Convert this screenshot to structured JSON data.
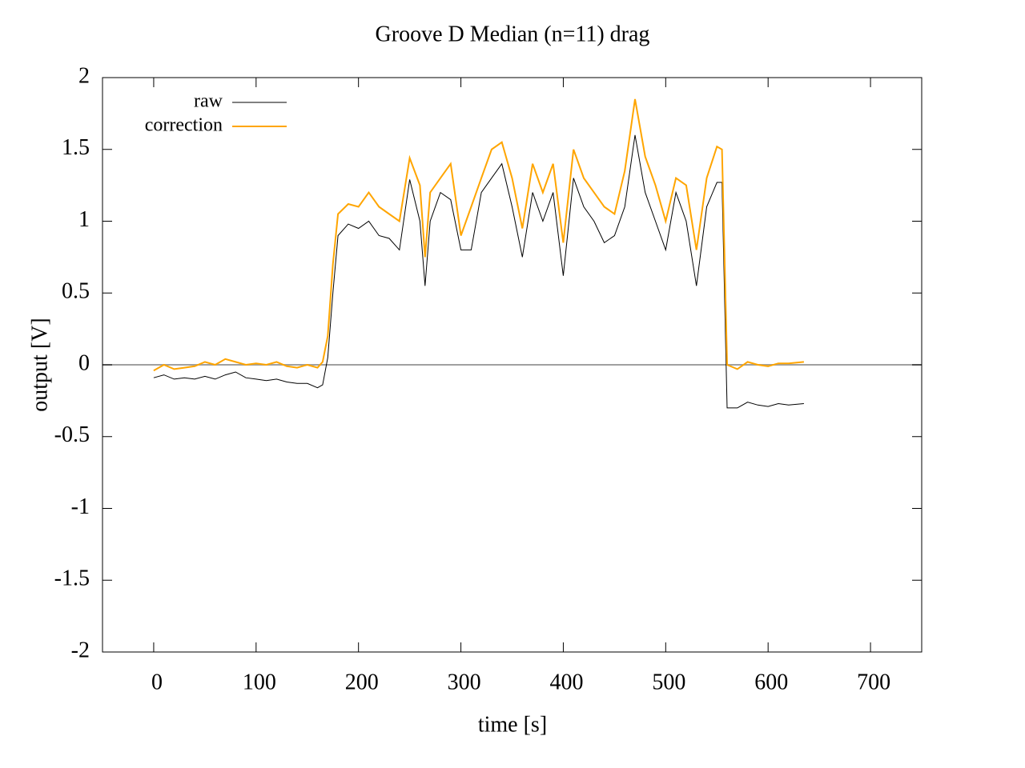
{
  "chart_data": {
    "type": "line",
    "title": "Groove D  Median (n=11) drag",
    "xlabel": "time [s]",
    "ylabel": "output [V]",
    "xlim": [
      -50,
      750
    ],
    "xticks": [
      0,
      100,
      200,
      300,
      400,
      500,
      600,
      700
    ],
    "ylim": [
      -2,
      2
    ],
    "yticks": [
      -2,
      -1.5,
      -1,
      -0.5,
      0,
      0.5,
      1,
      1.5,
      2
    ],
    "zero_axis": true,
    "legend": "top-left",
    "x": [
      0,
      10,
      20,
      30,
      40,
      50,
      60,
      70,
      80,
      90,
      100,
      110,
      120,
      130,
      140,
      150,
      160,
      165,
      170,
      175,
      180,
      190,
      200,
      210,
      220,
      230,
      240,
      250,
      260,
      265,
      270,
      280,
      290,
      300,
      310,
      320,
      330,
      340,
      350,
      360,
      370,
      380,
      390,
      400,
      410,
      420,
      430,
      440,
      450,
      460,
      470,
      480,
      490,
      500,
      510,
      520,
      530,
      540,
      550,
      555,
      560,
      570,
      580,
      590,
      600,
      610,
      620,
      635
    ],
    "series": [
      {
        "name": "raw",
        "color": "#000000",
        "values": [
          -0.09,
          -0.07,
          -0.1,
          -0.09,
          -0.1,
          -0.08,
          -0.1,
          -0.07,
          -0.05,
          -0.09,
          -0.1,
          -0.11,
          -0.1,
          -0.12,
          -0.13,
          -0.13,
          -0.16,
          -0.14,
          0.05,
          0.5,
          0.9,
          0.98,
          0.95,
          1.0,
          0.9,
          0.88,
          0.8,
          1.29,
          1.0,
          0.55,
          1.0,
          1.2,
          1.15,
          0.8,
          0.8,
          1.2,
          1.3,
          1.4,
          1.1,
          0.75,
          1.2,
          1.0,
          1.2,
          0.62,
          1.3,
          1.1,
          1.0,
          0.85,
          0.9,
          1.1,
          1.6,
          1.2,
          1.0,
          0.8,
          1.2,
          1.0,
          0.55,
          1.1,
          1.27,
          1.27,
          -0.3,
          -0.3,
          -0.26,
          -0.28,
          -0.29,
          -0.27,
          -0.28,
          -0.27
        ]
      },
      {
        "name": "correction",
        "color": "#ffa500",
        "values": [
          -0.04,
          0.0,
          -0.03,
          -0.02,
          -0.01,
          0.02,
          0.0,
          0.04,
          0.02,
          0.0,
          0.01,
          0.0,
          0.02,
          -0.01,
          -0.02,
          0.0,
          -0.02,
          0.02,
          0.2,
          0.7,
          1.05,
          1.12,
          1.1,
          1.2,
          1.1,
          1.05,
          1.0,
          1.44,
          1.25,
          0.75,
          1.2,
          1.3,
          1.4,
          0.9,
          1.1,
          1.3,
          1.5,
          1.55,
          1.3,
          0.95,
          1.4,
          1.2,
          1.4,
          0.85,
          1.5,
          1.3,
          1.2,
          1.1,
          1.05,
          1.35,
          1.85,
          1.45,
          1.25,
          1.0,
          1.3,
          1.25,
          0.8,
          1.3,
          1.52,
          1.5,
          0.0,
          -0.03,
          0.02,
          0.0,
          -0.01,
          0.01,
          0.01,
          0.02
        ]
      }
    ]
  }
}
